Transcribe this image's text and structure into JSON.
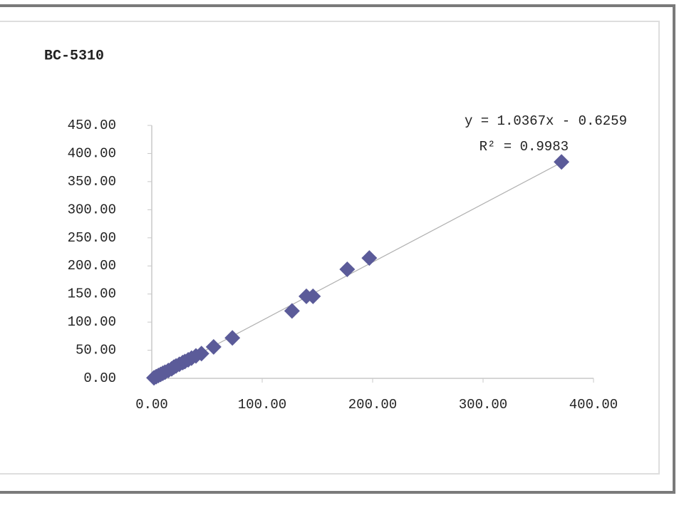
{
  "chart_data": {
    "type": "scatter",
    "title": "BC-5310",
    "x": [
      2,
      4,
      6,
      8,
      10,
      12,
      15,
      18,
      20,
      22,
      25,
      28,
      30,
      33,
      36,
      40,
      45,
      56,
      73,
      127,
      140,
      146,
      177,
      197,
      371
    ],
    "series": [
      {
        "name": "BC-5310",
        "color": "#5b5b99",
        "values": [
          1,
          3,
          5,
          7,
          9,
          11,
          14,
          17,
          20,
          22,
          25,
          28,
          30,
          33,
          36,
          40,
          44,
          56,
          72,
          120,
          146,
          146,
          194,
          214,
          385
        ]
      }
    ],
    "xlim": [
      0,
      400
    ],
    "ylim": [
      0,
      450
    ],
    "xticks": [
      {
        "value": 0,
        "label": "0.00"
      },
      {
        "value": 100,
        "label": "100.00"
      },
      {
        "value": 200,
        "label": "200.00"
      },
      {
        "value": 300,
        "label": "300.00"
      },
      {
        "value": 400,
        "label": "400.00"
      }
    ],
    "yticks": [
      {
        "value": 0,
        "label": "0.00"
      },
      {
        "value": 50,
        "label": "50.00"
      },
      {
        "value": 100,
        "label": "100.00"
      },
      {
        "value": 150,
        "label": "150.00"
      },
      {
        "value": 200,
        "label": "200.00"
      },
      {
        "value": 250,
        "label": "250.00"
      },
      {
        "value": 300,
        "label": "300.00"
      },
      {
        "value": 350,
        "label": "350.00"
      },
      {
        "value": 400,
        "label": "400.00"
      },
      {
        "value": 450,
        "label": "450.00"
      }
    ],
    "trendline": {
      "slope": 1.0367,
      "intercept": -0.6259,
      "color": "#b0b0b0",
      "label": "y = 1.0367x - 0.6259",
      "r2_label": "R² = 0.9983"
    }
  }
}
